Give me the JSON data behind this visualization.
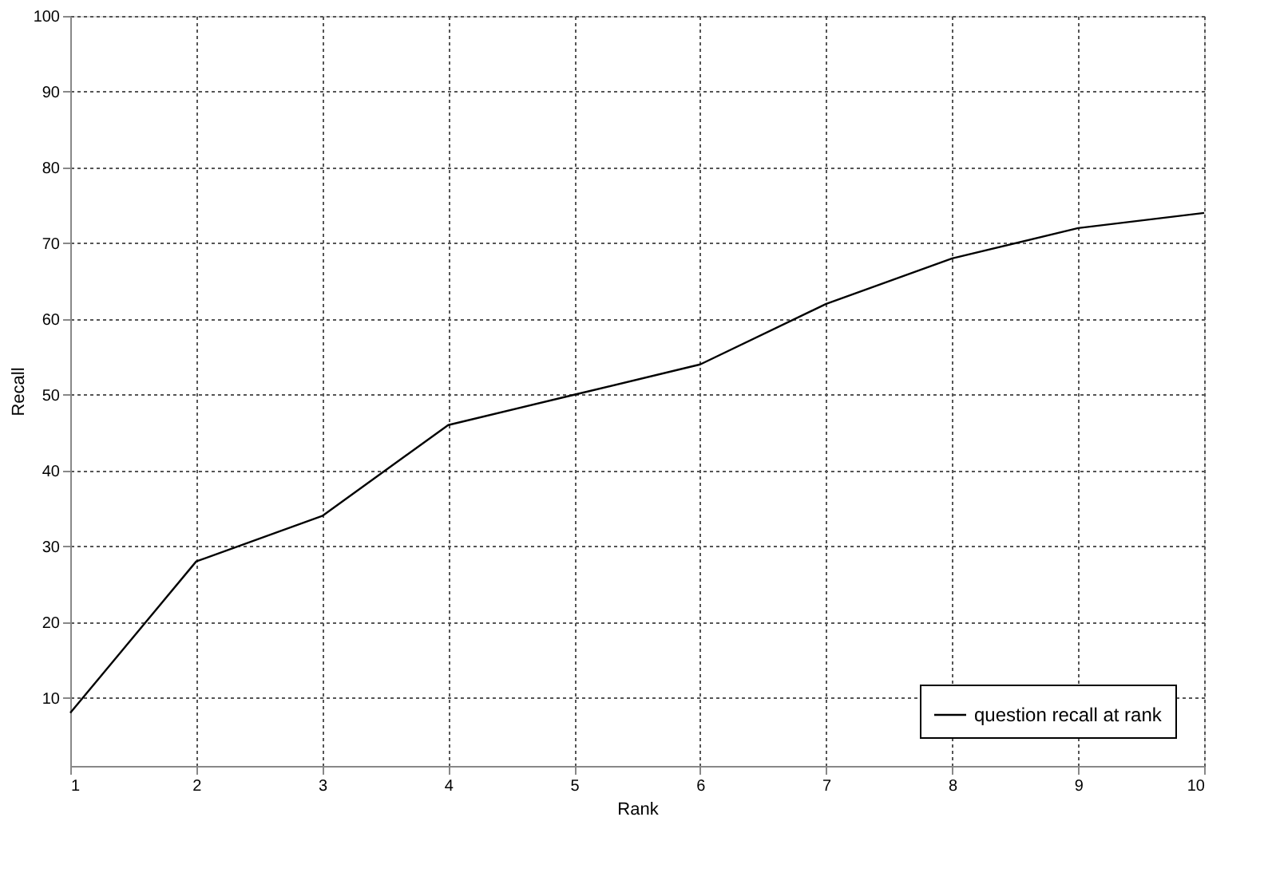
{
  "chart_data": {
    "type": "line",
    "xlabel": "Rank",
    "ylabel": "Recall",
    "x": [
      1,
      2,
      3,
      4,
      5,
      6,
      7,
      8,
      9,
      10
    ],
    "series": [
      {
        "name": "question recall at rank",
        "color": "#000000",
        "values": [
          8,
          28,
          34,
          46,
          50,
          54,
          62,
          68,
          72,
          74
        ]
      }
    ],
    "xlim": [
      1,
      10
    ],
    "xticks": [
      1,
      2,
      3,
      4,
      5,
      6,
      7,
      8,
      9,
      10
    ],
    "ylim": [
      1,
      100
    ],
    "yticks": [
      10,
      20,
      30,
      40,
      50,
      60,
      70,
      80,
      90,
      100
    ],
    "grid": true,
    "legend": "bottom right",
    "marker": "none",
    "line_style": "solid"
  }
}
